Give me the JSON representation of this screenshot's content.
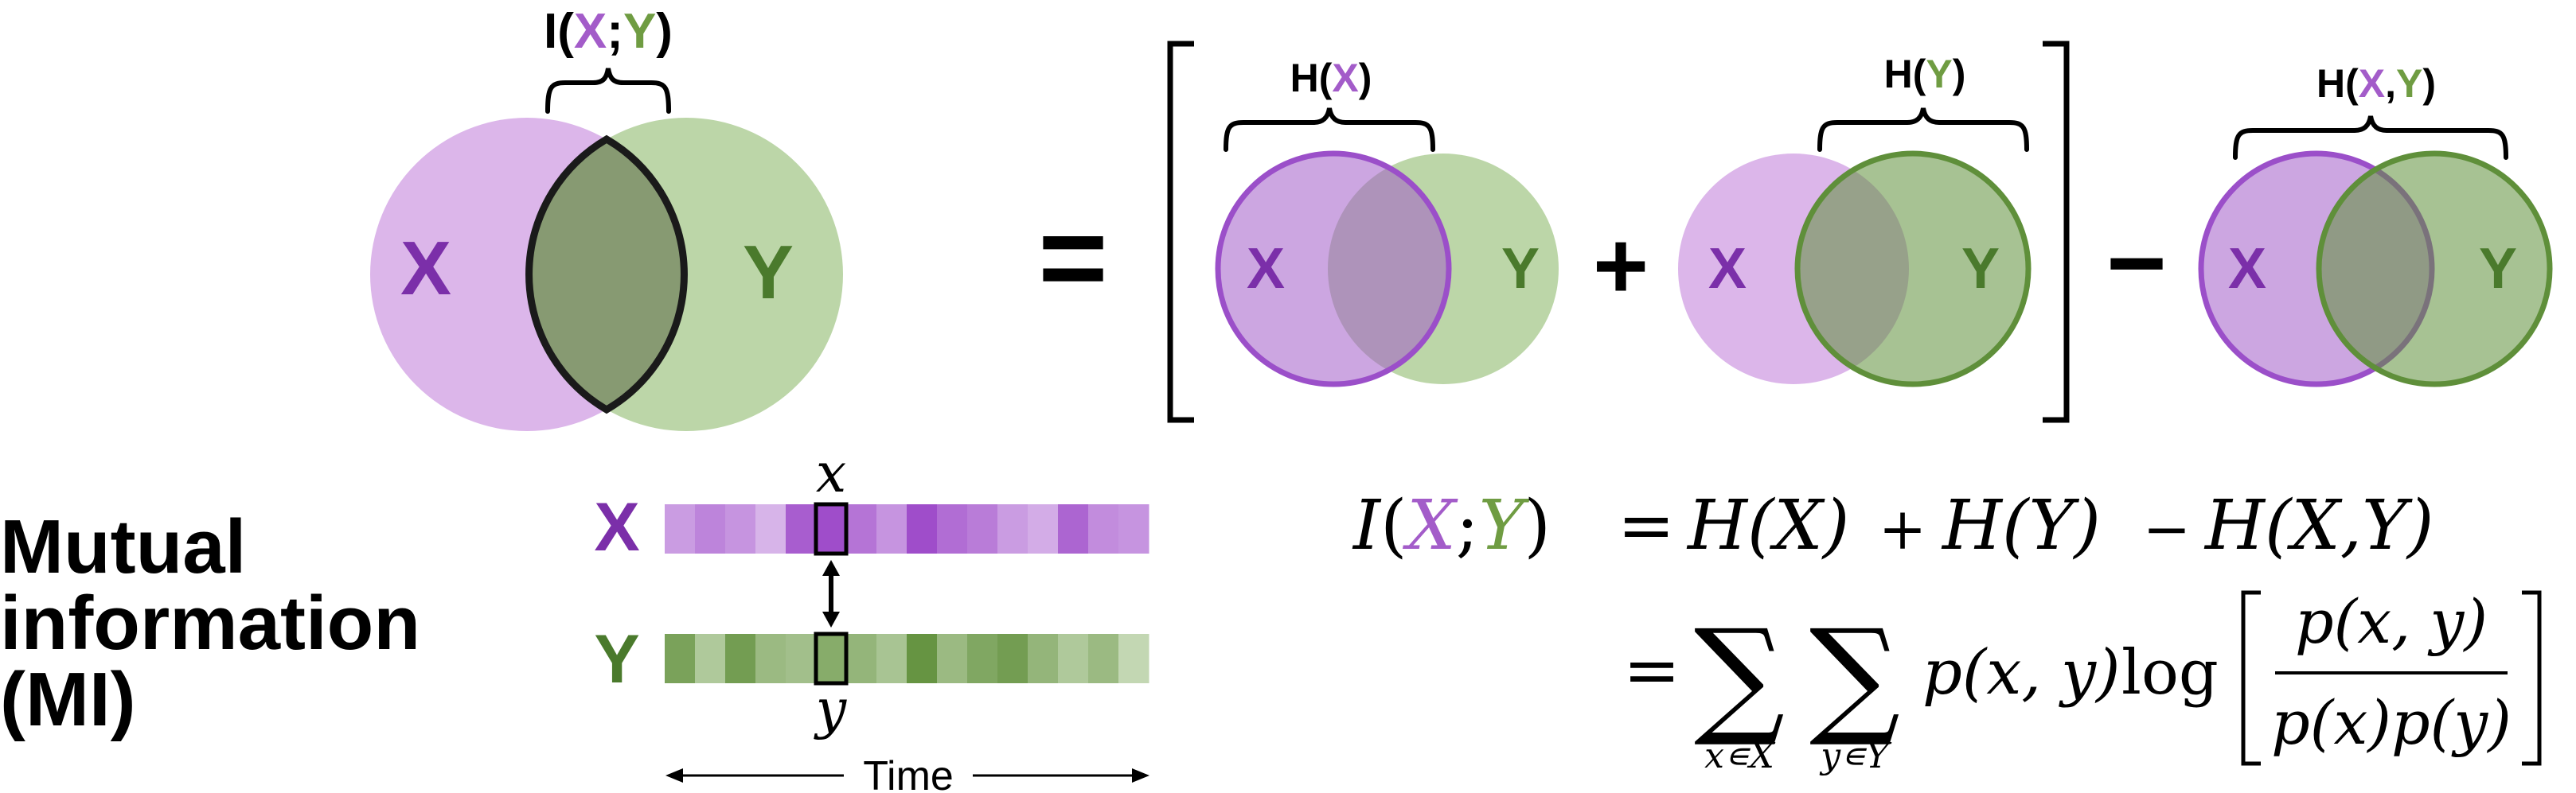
{
  "colors": {
    "x_light": "#dcb6ea",
    "x_dark": "#7b2fa9",
    "x_stroke": "#9b4fc9",
    "y_light": "#bcd6a8",
    "y_dark": "#4a7a2c",
    "y_stroke": "#5f8f3a",
    "overlap": "#879a72"
  },
  "venn": {
    "x_label": "X",
    "y_label": "Y",
    "mi_label_prefix": "I(",
    "mi_label_sep": ";",
    "mi_label_suffix": ")"
  },
  "terms": {
    "hx_prefix": "H(",
    "hx_var": "X",
    "hx_suffix": ")",
    "hy_prefix": "H(",
    "hy_var": "Y",
    "hy_suffix": ")",
    "hxy_prefix": "H(",
    "hxy_var1": "X",
    "hxy_comma": ",",
    "hxy_var2": "Y",
    "hxy_suffix": ")",
    "equals": "=",
    "plus": "+",
    "minus": "−"
  },
  "title": {
    "line1": "Mutual",
    "line2": "information",
    "line3": "(MI)"
  },
  "timeseries": {
    "x_row_label": "X",
    "y_row_label": "Y",
    "x_sample": "x",
    "y_sample": "y",
    "axis_label": "Time",
    "x_shades": [
      0.45,
      0.6,
      0.5,
      0.3,
      0.85,
      0.95,
      0.7,
      0.5,
      0.95,
      0.75,
      0.65,
      0.45,
      0.35,
      0.8,
      0.55,
      0.5
    ],
    "y_shades": [
      0.8,
      0.4,
      0.85,
      0.55,
      0.5,
      0.7,
      0.6,
      0.45,
      0.95,
      0.55,
      0.75,
      0.85,
      0.6,
      0.4,
      0.55,
      0.25
    ],
    "highlight_index": 5
  },
  "formula": {
    "line1": {
      "lhs_I": "I",
      "open": "(",
      "X": "X",
      "semi": ";",
      "Y": "Y",
      "close": ")",
      "eq": "=",
      "t1": "H(X)",
      "plus": "+",
      "t2": "H(Y)",
      "minus": "−",
      "t3": "H(X,Y)"
    },
    "line2": {
      "eq": "=",
      "sum1_sub": "x∊X",
      "sum2_sub": "y∊Y",
      "pxy": "p(x, y)",
      "log": "log",
      "num": "p(x, y)",
      "den": "p(x)p(y)"
    }
  }
}
